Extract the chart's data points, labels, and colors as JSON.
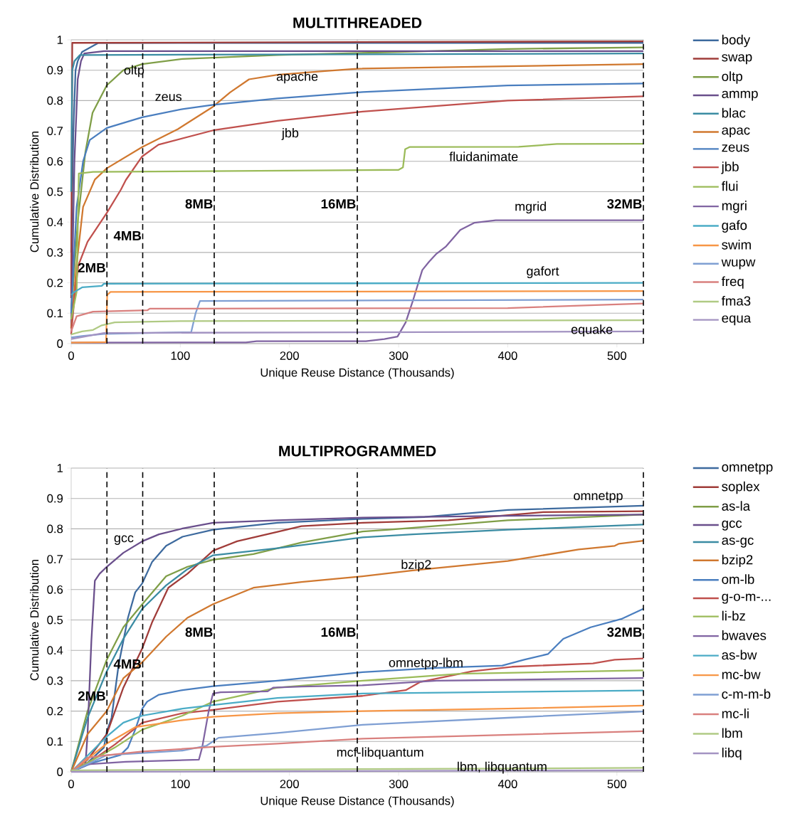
{
  "chart_data": [
    {
      "type": "line",
      "title": "MULTITHREADED",
      "xlabel": "Unique Reuse Distance (Thousands)",
      "ylabel": "Cumulative Distribution",
      "xlim": [
        0,
        524.288
      ],
      "ylim": [
        0,
        1
      ],
      "xticks": [
        0,
        100,
        200,
        300,
        400,
        500
      ],
      "yticks": [
        0,
        0.1,
        0.2,
        0.3,
        0.4,
        0.5,
        0.6,
        0.7,
        0.8,
        0.9,
        1
      ],
      "grid": "y",
      "legend": "right",
      "line_style": "solid",
      "series": [
        {
          "name": "body",
          "color": "#3d6a9e",
          "x": [
            0,
            2,
            4,
            6,
            10,
            15,
            25,
            524.288
          ],
          "values": [
            0.3,
            0.7,
            0.9,
            0.93,
            0.96,
            0.97,
            0.99,
            0.99
          ]
        },
        {
          "name": "swap",
          "color": "#a03c39",
          "x": [
            0,
            1,
            524.288
          ],
          "values": [
            0.15,
            0.99,
            0.995
          ]
        },
        {
          "name": "oltp",
          "color": "#7f9e47",
          "x": [
            0,
            6,
            13,
            19.6,
            32.6,
            47.8,
            65,
            102,
            189,
            300,
            400,
            524.288
          ],
          "values": [
            0.1,
            0.4,
            0.63,
            0.76,
            0.85,
            0.9,
            0.92,
            0.937,
            0.95,
            0.96,
            0.97,
            0.975
          ]
        },
        {
          "name": "ammp",
          "color": "#6a4f8c",
          "x": [
            0,
            3,
            6,
            9,
            12,
            30,
            524.288
          ],
          "values": [
            0.05,
            0.6,
            0.87,
            0.93,
            0.955,
            0.963,
            0.963
          ]
        },
        {
          "name": "blac",
          "color": "#3b8ca3",
          "x": [
            0,
            1,
            3,
            8,
            524.288
          ],
          "values": [
            0.5,
            0.9,
            0.93,
            0.95,
            0.955
          ]
        },
        {
          "name": "apac",
          "color": "#d0782f",
          "x": [
            0,
            5,
            10.9,
            21.7,
            32.6,
            65,
            97.8,
            130,
            145.6,
            163,
            189,
            232.6,
            262,
            400,
            524.288
          ],
          "values": [
            0.05,
            0.26,
            0.45,
            0.54,
            0.577,
            0.647,
            0.706,
            0.78,
            0.827,
            0.87,
            0.885,
            0.897,
            0.905,
            0.913,
            0.92
          ]
        },
        {
          "name": "zeus",
          "color": "#4a7ebf",
          "x": [
            0,
            5,
            10.9,
            17,
            32.6,
            65,
            102,
            130,
            189,
            267,
            400,
            524.288
          ],
          "values": [
            0.1,
            0.45,
            0.6,
            0.67,
            0.71,
            0.745,
            0.772,
            0.786,
            0.807,
            0.828,
            0.85,
            0.856
          ]
        },
        {
          "name": "jbb",
          "color": "#c0504d",
          "x": [
            0,
            3,
            6.5,
            15,
            32.6,
            45.6,
            50,
            65,
            80,
            130,
            189,
            267,
            400,
            524.288
          ],
          "values": [
            0.03,
            0.15,
            0.257,
            0.335,
            0.43,
            0.507,
            0.538,
            0.616,
            0.655,
            0.702,
            0.733,
            0.764,
            0.8,
            0.814
          ]
        },
        {
          "name": "flui",
          "color": "#9bbb59",
          "x": [
            0,
            5,
            7,
            20,
            300,
            304,
            306,
            310,
            410,
            445,
            524.288
          ],
          "values": [
            0.08,
            0.17,
            0.56,
            0.565,
            0.572,
            0.58,
            0.64,
            0.647,
            0.648,
            0.657,
            0.658
          ]
        },
        {
          "name": "mgri",
          "color": "#8064a2",
          "x": [
            0,
            160,
            170,
            270,
            287,
            299,
            306.5,
            313,
            321.7,
            328,
            334.8,
            343.5,
            356.5,
            369.6,
            389,
            524.288
          ],
          "values": [
            0.003,
            0.004,
            0.008,
            0.008,
            0.015,
            0.023,
            0.07,
            0.14,
            0.242,
            0.27,
            0.296,
            0.32,
            0.374,
            0.398,
            0.406,
            0.406
          ]
        },
        {
          "name": "gafo",
          "color": "#4bacc6",
          "x": [
            0,
            3,
            10,
            28,
            30,
            524.288
          ],
          "values": [
            0.16,
            0.17,
            0.185,
            0.19,
            0.197,
            0.2
          ]
        },
        {
          "name": "swim",
          "color": "#f79646",
          "x": [
            0,
            32,
            33,
            36,
            524.288
          ],
          "values": [
            0.003,
            0.005,
            0.16,
            0.17,
            0.173
          ]
        },
        {
          "name": "wupw",
          "color": "#7f9fd3",
          "x": [
            0,
            10,
            30,
            110,
            114,
            118,
            524.288
          ],
          "values": [
            0.02,
            0.025,
            0.032,
            0.038,
            0.1,
            0.14,
            0.145
          ]
        },
        {
          "name": "freq",
          "color": "#d9807e",
          "x": [
            0,
            5,
            20,
            70,
            72,
            400,
            524.288
          ],
          "values": [
            0.04,
            0.09,
            0.105,
            0.11,
            0.115,
            0.117,
            0.132
          ]
        },
        {
          "name": "fma3",
          "color": "#b0ca84",
          "x": [
            0,
            10,
            20,
            28,
            40,
            100,
            524.288
          ],
          "values": [
            0.03,
            0.04,
            0.045,
            0.06,
            0.07,
            0.074,
            0.077
          ]
        },
        {
          "name": "equa",
          "color": "#a393c2",
          "x": [
            0,
            30,
            524.288
          ],
          "values": [
            0.015,
            0.035,
            0.04
          ]
        }
      ],
      "ref_lines": [
        {
          "axis": "x",
          "value": 32.768,
          "label": "2MB",
          "color": "#000000",
          "line_style": "dashed"
        },
        {
          "axis": "x",
          "value": 65.536,
          "label": "4MB",
          "color": "#000000",
          "line_style": "dashed"
        },
        {
          "axis": "x",
          "value": 131.072,
          "label": "8MB",
          "color": "#000000",
          "line_style": "dashed"
        },
        {
          "axis": "x",
          "value": 262.144,
          "label": "16MB",
          "color": "#000000",
          "line_style": "dashed"
        },
        {
          "axis": "x",
          "value": 524.288,
          "label": "32MB",
          "color": "#000000",
          "line_style": "dashed"
        }
      ],
      "annotations": [
        "oltp",
        "zeus",
        "apache",
        "jbb",
        "fluidanimate",
        "mgrid",
        "gafort",
        "equake"
      ]
    },
    {
      "type": "line",
      "title": "MULTIPROGRAMMED",
      "xlabel": "Unique Reuse Distance (Thousands)",
      "ylabel": "Cumulative Distribution",
      "xlim": [
        0,
        524.288
      ],
      "ylim": [
        0,
        1
      ],
      "xticks": [
        0,
        100,
        200,
        300,
        400,
        500
      ],
      "yticks": [
        0,
        0.1,
        0.2,
        0.3,
        0.4,
        0.5,
        0.6,
        0.7,
        0.8,
        0.9,
        1
      ],
      "grid": "y",
      "legend": "right",
      "line_style": "solid",
      "series": [
        {
          "name": "omnetpp",
          "color": "#3d6a9e",
          "x": [
            0,
            15,
            30,
            32.6,
            37,
            43.5,
            52,
            58.7,
            65.2,
            74,
            87,
            102,
            130,
            189,
            267,
            324,
            400,
            524.288
          ],
          "values": [
            0,
            0.03,
            0.08,
            0.132,
            0.178,
            0.353,
            0.507,
            0.591,
            0.621,
            0.69,
            0.744,
            0.774,
            0.797,
            0.82,
            0.833,
            0.839,
            0.862,
            0.876
          ]
        },
        {
          "name": "soplex",
          "color": "#a03c39",
          "x": [
            0,
            15,
            32.6,
            47.8,
            65.2,
            74,
            89,
            106.5,
            130,
            152,
            189,
            211,
            267,
            345.6,
            432.6,
            524.288
          ],
          "values": [
            0,
            0.04,
            0.124,
            0.277,
            0.407,
            0.491,
            0.606,
            0.652,
            0.728,
            0.759,
            0.79,
            0.809,
            0.82,
            0.828,
            0.855,
            0.858
          ]
        },
        {
          "name": "as-la",
          "color": "#7f9e47",
          "x": [
            0,
            15,
            32.6,
            47.8,
            65.2,
            87,
            106.5,
            130,
            167,
            211,
            267,
            291,
            400,
            524.288
          ],
          "values": [
            0,
            0.2,
            0.369,
            0.476,
            0.552,
            0.644,
            0.675,
            0.698,
            0.717,
            0.755,
            0.791,
            0.797,
            0.828,
            0.847
          ]
        },
        {
          "name": "gcc",
          "color": "#6a4f8c",
          "x": [
            0,
            13,
            15,
            18.5,
            21.7,
            26,
            32.6,
            47.8,
            65.2,
            80.4,
            102,
            130,
            189,
            267,
            400,
            524.288
          ],
          "values": [
            0,
            0.02,
            0.124,
            0.43,
            0.629,
            0.652,
            0.675,
            0.721,
            0.759,
            0.782,
            0.801,
            0.82,
            0.828,
            0.837,
            0.843,
            0.847
          ]
        },
        {
          "name": "as-gc",
          "color": "#3b8ca3",
          "x": [
            0,
            15,
            32.6,
            47.8,
            65.2,
            87,
            106.5,
            130,
            189,
            267,
            313,
            400,
            524.288
          ],
          "values": [
            0,
            0.178,
            0.331,
            0.438,
            0.537,
            0.614,
            0.667,
            0.713,
            0.736,
            0.772,
            0.782,
            0.797,
            0.814
          ]
        },
        {
          "name": "bzip2",
          "color": "#d0782f",
          "x": [
            0,
            15,
            32.6,
            47.8,
            65.2,
            87,
            106.5,
            130,
            167,
            211,
            267,
            313,
            400,
            465,
            498,
            502,
            524.288
          ],
          "values": [
            0,
            0.124,
            0.2,
            0.308,
            0.361,
            0.445,
            0.507,
            0.552,
            0.606,
            0.625,
            0.644,
            0.663,
            0.694,
            0.732,
            0.744,
            0.751,
            0.761
          ]
        },
        {
          "name": "om-lb",
          "color": "#4a7ebf",
          "x": [
            0,
            20,
            45,
            52,
            58.7,
            65.2,
            69.6,
            80.4,
            102,
            130,
            189,
            267,
            335,
            395,
            415,
            437,
            450.9,
            476,
            504,
            524.288
          ],
          "values": [
            0,
            0.03,
            0.055,
            0.08,
            0.139,
            0.208,
            0.231,
            0.254,
            0.269,
            0.282,
            0.3,
            0.328,
            0.342,
            0.35,
            0.369,
            0.388,
            0.438,
            0.476,
            0.503,
            0.537
          ]
        },
        {
          "name": "g-o-m-...",
          "color": "#c0504d",
          "x": [
            0,
            20,
            40,
            65.2,
            102,
            130,
            189,
            267,
            306.5,
            320,
            367.4,
            404,
            478,
            498,
            524.288
          ],
          "values": [
            0,
            0.04,
            0.09,
            0.162,
            0.193,
            0.204,
            0.231,
            0.25,
            0.269,
            0.296,
            0.331,
            0.346,
            0.357,
            0.369,
            0.373
          ]
        },
        {
          "name": "li-bz",
          "color": "#9bbb59",
          "x": [
            0,
            20,
            40,
            65.2,
            102,
            130,
            189,
            267,
            356.5,
            524.288
          ],
          "values": [
            0,
            0.04,
            0.08,
            0.139,
            0.185,
            0.231,
            0.277,
            0.3,
            0.323,
            0.334
          ]
        },
        {
          "name": "bwaves",
          "color": "#8064a2",
          "x": [
            0,
            15,
            50,
            117,
            120,
            126,
            130,
            137,
            180,
            185,
            211,
            267,
            335,
            524.288
          ],
          "values": [
            0,
            0.025,
            0.033,
            0.04,
            0.08,
            0.2,
            0.258,
            0.262,
            0.265,
            0.277,
            0.281,
            0.285,
            0.3,
            0.309
          ]
        },
        {
          "name": "as-bw",
          "color": "#4bacc6",
          "x": [
            0,
            32.6,
            47.8,
            65.2,
            102,
            130,
            189,
            267,
            400,
            524.288
          ],
          "values": [
            0,
            0.116,
            0.162,
            0.185,
            0.208,
            0.22,
            0.243,
            0.258,
            0.263,
            0.268
          ]
        },
        {
          "name": "mc-bw",
          "color": "#f79646",
          "x": [
            0,
            32.6,
            47.8,
            58.7,
            102,
            130,
            189,
            267,
            400,
            524.288
          ],
          "values": [
            0,
            0.093,
            0.124,
            0.147,
            0.17,
            0.181,
            0.193,
            0.2,
            0.208,
            0.218
          ]
        },
        {
          "name": "c-m-m-b",
          "color": "#7f9fd3",
          "x": [
            0,
            32.6,
            102,
            124,
            135,
            189,
            267,
            400,
            524.288
          ],
          "values": [
            0,
            0.055,
            0.07,
            0.086,
            0.112,
            0.128,
            0.155,
            0.178,
            0.199
          ]
        },
        {
          "name": "mc-li",
          "color": "#d9807e",
          "x": [
            0,
            15,
            32.6,
            65.2,
            130,
            189,
            267,
            524.288
          ],
          "values": [
            0,
            0.047,
            0.055,
            0.067,
            0.082,
            0.093,
            0.109,
            0.134
          ]
        },
        {
          "name": "lbm",
          "color": "#b0ca84",
          "x": [
            0,
            524.288
          ],
          "values": [
            0.005,
            0.013
          ]
        },
        {
          "name": "libq",
          "color": "#a393c2",
          "x": [
            0,
            524.288
          ],
          "values": [
            0,
            0.005
          ]
        }
      ],
      "ref_lines": [
        {
          "axis": "x",
          "value": 32.768,
          "label": "2MB",
          "color": "#000000",
          "line_style": "dashed"
        },
        {
          "axis": "x",
          "value": 65.536,
          "label": "4MB",
          "color": "#000000",
          "line_style": "dashed"
        },
        {
          "axis": "x",
          "value": 131.072,
          "label": "8MB",
          "color": "#000000",
          "line_style": "dashed"
        },
        {
          "axis": "x",
          "value": 262.144,
          "label": "16MB",
          "color": "#000000",
          "line_style": "dashed"
        },
        {
          "axis": "x",
          "value": 524.288,
          "label": "32MB",
          "color": "#000000",
          "line_style": "dashed"
        }
      ],
      "annotations": [
        "omnetpp",
        "gcc",
        "bzip2",
        "omnetpp-lbm",
        "mcf-libquantum",
        "lbm, libquantum"
      ]
    }
  ]
}
